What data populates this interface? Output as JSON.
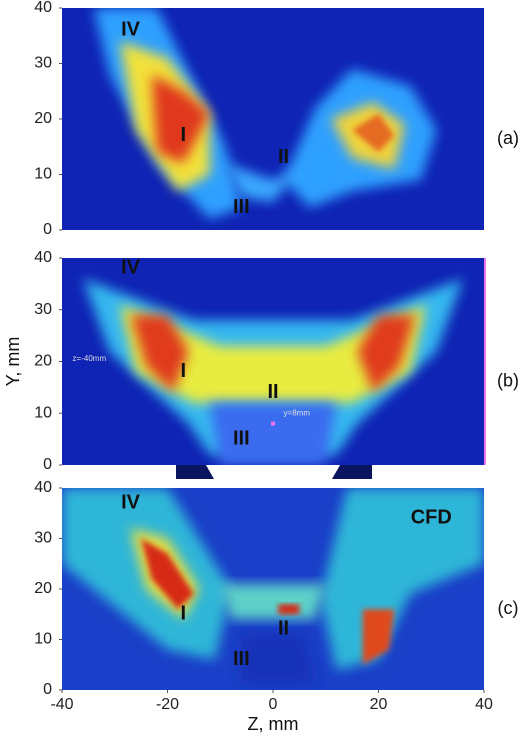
{
  "chart_data": [
    {
      "type": "heatmap",
      "panel_label": "(a)",
      "ylim": [
        0,
        40
      ],
      "yticks": [
        0,
        10,
        20,
        30,
        40
      ],
      "xlim": [
        -40,
        40
      ],
      "annotations": [
        "IV",
        "I",
        "II",
        "III"
      ]
    },
    {
      "type": "heatmap",
      "panel_label": "(b)",
      "ylabel": "Y, mm",
      "ylim": [
        0,
        40
      ],
      "yticks": [
        0,
        10,
        20,
        30,
        40
      ],
      "xlim": [
        -40,
        40
      ],
      "annotations": [
        "IV",
        "I",
        "II",
        "III"
      ],
      "notes": [
        "z=-40mm",
        "y=8mm"
      ]
    },
    {
      "type": "heatmap",
      "panel_label": "(c)",
      "xlabel": "Z, mm",
      "ylim": [
        0,
        40
      ],
      "yticks": [
        0,
        10,
        20,
        30,
        40
      ],
      "xlim": [
        -40,
        40
      ],
      "xticks": [
        -40,
        -20,
        0,
        20,
        40
      ],
      "annotations": [
        "IV",
        "I",
        "II",
        "III",
        "CFD"
      ]
    }
  ]
}
